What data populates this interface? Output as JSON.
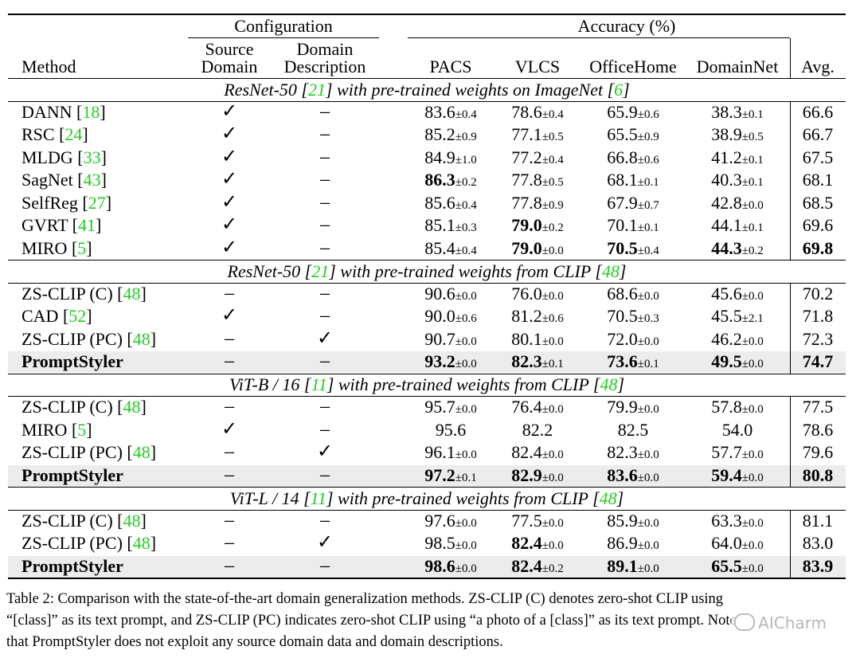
{
  "header": {
    "configuration": "Configuration",
    "accuracy": "Accuracy (%)",
    "method": "Method",
    "source_domain_1": "Source",
    "source_domain_2": "Domain",
    "domain_desc_1": "Domain",
    "domain_desc_2": "Description",
    "pacs": "PACS",
    "vlcs": "VLCS",
    "officehome": "OfficeHome",
    "domainnet": "DomainNet",
    "avg": "Avg."
  },
  "sections": [
    {
      "title_pre": "ResNet-50 [",
      "title_ref1": "21",
      "title_mid": "] with pre-trained weights on ImageNet [",
      "title_ref2": "6",
      "title_post": "]",
      "rows": [
        {
          "method": "DANN [",
          "ref": "18",
          "src": "✓",
          "desc": "–",
          "pacs": "83.6",
          "pacs_sd": "±0.4",
          "vlcs": "78.6",
          "vlcs_sd": "±0.4",
          "oh": "65.9",
          "oh_sd": "±0.6",
          "dn": "38.3",
          "dn_sd": "±0.1",
          "avg": "66.6"
        },
        {
          "method": "RSC [",
          "ref": "24",
          "src": "✓",
          "desc": "–",
          "pacs": "85.2",
          "pacs_sd": "±0.9",
          "vlcs": "77.1",
          "vlcs_sd": "±0.5",
          "oh": "65.5",
          "oh_sd": "±0.9",
          "dn": "38.9",
          "dn_sd": "±0.5",
          "avg": "66.7"
        },
        {
          "method": "MLDG [",
          "ref": "33",
          "src": "✓",
          "desc": "–",
          "pacs": "84.9",
          "pacs_sd": "±1.0",
          "vlcs": "77.2",
          "vlcs_sd": "±0.4",
          "oh": "66.8",
          "oh_sd": "±0.6",
          "dn": "41.2",
          "dn_sd": "±0.1",
          "avg": "67.5"
        },
        {
          "method": "SagNet [",
          "ref": "43",
          "src": "✓",
          "desc": "–",
          "pacs": "86.3",
          "pacs_sd": "±0.2",
          "vlcs": "77.8",
          "vlcs_sd": "±0.5",
          "oh": "68.1",
          "oh_sd": "±0.1",
          "dn": "40.3",
          "dn_sd": "±0.1",
          "avg": "68.1",
          "bold": [
            "pacs"
          ]
        },
        {
          "method": "SelfReg [",
          "ref": "27",
          "src": "✓",
          "desc": "–",
          "pacs": "85.6",
          "pacs_sd": "±0.4",
          "vlcs": "77.8",
          "vlcs_sd": "±0.9",
          "oh": "67.9",
          "oh_sd": "±0.7",
          "dn": "42.8",
          "dn_sd": "±0.0",
          "avg": "68.5"
        },
        {
          "method": "GVRT [",
          "ref": "41",
          "src": "✓",
          "desc": "–",
          "pacs": "85.1",
          "pacs_sd": "±0.3",
          "vlcs": "79.0",
          "vlcs_sd": "±0.2",
          "oh": "70.1",
          "oh_sd": "±0.1",
          "dn": "44.1",
          "dn_sd": "±0.1",
          "avg": "69.6",
          "bold": [
            "vlcs"
          ]
        },
        {
          "method": "MIRO [",
          "ref": "5",
          "src": "✓",
          "desc": "–",
          "pacs": "85.4",
          "pacs_sd": "±0.4",
          "vlcs": "79.0",
          "vlcs_sd": "±0.0",
          "oh": "70.5",
          "oh_sd": "±0.4",
          "dn": "44.3",
          "dn_sd": "±0.2",
          "avg": "69.8",
          "bold": [
            "vlcs",
            "oh",
            "dn",
            "avg"
          ]
        }
      ]
    },
    {
      "title_pre": "ResNet-50 [",
      "title_ref1": "21",
      "title_mid": "] with pre-trained weights from CLIP [",
      "title_ref2": "48",
      "title_post": "]",
      "rows": [
        {
          "method": "ZS-CLIP (C) [",
          "ref": "48",
          "src": "–",
          "desc": "–",
          "pacs": "90.6",
          "pacs_sd": "±0.0",
          "vlcs": "76.0",
          "vlcs_sd": "±0.0",
          "oh": "68.6",
          "oh_sd": "±0.0",
          "dn": "45.6",
          "dn_sd": "±0.0",
          "avg": "70.2"
        },
        {
          "method": "CAD [",
          "ref": "52",
          "src": "✓",
          "desc": "–",
          "pacs": "90.0",
          "pacs_sd": "±0.6",
          "vlcs": "81.2",
          "vlcs_sd": "±0.6",
          "oh": "70.5",
          "oh_sd": "±0.3",
          "dn": "45.5",
          "dn_sd": "±2.1",
          "avg": "71.8"
        },
        {
          "method": "ZS-CLIP (PC) [",
          "ref": "48",
          "src": "–",
          "desc": "✓",
          "pacs": "90.7",
          "pacs_sd": "±0.0",
          "vlcs": "80.1",
          "vlcs_sd": "±0.0",
          "oh": "72.0",
          "oh_sd": "±0.0",
          "dn": "46.2",
          "dn_sd": "±0.0",
          "avg": "72.3"
        },
        {
          "method": "PromptStyler",
          "ref": "",
          "src": "–",
          "desc": "–",
          "pacs": "93.2",
          "pacs_sd": "±0.0",
          "vlcs": "82.3",
          "vlcs_sd": "±0.1",
          "oh": "73.6",
          "oh_sd": "±0.1",
          "dn": "49.5",
          "dn_sd": "±0.0",
          "avg": "74.7",
          "ours": true,
          "bold": [
            "pacs",
            "vlcs",
            "oh",
            "dn",
            "avg"
          ]
        }
      ]
    },
    {
      "title_pre": "ViT-B / 16 [",
      "title_ref1": "11",
      "title_mid": "] with pre-trained weights from CLIP [",
      "title_ref2": "48",
      "title_post": "]",
      "rows": [
        {
          "method": "ZS-CLIP (C) [",
          "ref": "48",
          "src": "–",
          "desc": "–",
          "pacs": "95.7",
          "pacs_sd": "±0.0",
          "vlcs": "76.4",
          "vlcs_sd": "±0.0",
          "oh": "79.9",
          "oh_sd": "±0.0",
          "dn": "57.8",
          "dn_sd": "±0.0",
          "avg": "77.5"
        },
        {
          "method": "MIRO [",
          "ref": "5",
          "src": "✓",
          "desc": "–",
          "pacs": "95.6",
          "pacs_sd": "",
          "vlcs": "82.2",
          "vlcs_sd": "",
          "oh": "82.5",
          "oh_sd": "",
          "dn": "54.0",
          "dn_sd": "",
          "avg": "78.6"
        },
        {
          "method": "ZS-CLIP (PC) [",
          "ref": "48",
          "src": "–",
          "desc": "✓",
          "pacs": "96.1",
          "pacs_sd": "±0.0",
          "vlcs": "82.4",
          "vlcs_sd": "±0.0",
          "oh": "82.3",
          "oh_sd": "±0.0",
          "dn": "57.7",
          "dn_sd": "±0.0",
          "avg": "79.6"
        },
        {
          "method": "PromptStyler",
          "ref": "",
          "src": "–",
          "desc": "–",
          "pacs": "97.2",
          "pacs_sd": "±0.1",
          "vlcs": "82.9",
          "vlcs_sd": "±0.0",
          "oh": "83.6",
          "oh_sd": "±0.0",
          "dn": "59.4",
          "dn_sd": "±0.0",
          "avg": "80.8",
          "ours": true,
          "bold": [
            "pacs",
            "vlcs",
            "oh",
            "dn",
            "avg"
          ]
        }
      ]
    },
    {
      "title_pre": "ViT-L / 14 [",
      "title_ref1": "11",
      "title_mid": "] with pre-trained weights from CLIP [",
      "title_ref2": "48",
      "title_post": "]",
      "rows": [
        {
          "method": "ZS-CLIP (C) [",
          "ref": "48",
          "src": "–",
          "desc": "–",
          "pacs": "97.6",
          "pacs_sd": "±0.0",
          "vlcs": "77.5",
          "vlcs_sd": "±0.0",
          "oh": "85.9",
          "oh_sd": "±0.0",
          "dn": "63.3",
          "dn_sd": "±0.0",
          "avg": "81.1"
        },
        {
          "method": "ZS-CLIP (PC) [",
          "ref": "48",
          "src": "–",
          "desc": "✓",
          "pacs": "98.5",
          "pacs_sd": "±0.0",
          "vlcs": "82.4",
          "vlcs_sd": "±0.0",
          "oh": "86.9",
          "oh_sd": "±0.0",
          "dn": "64.0",
          "dn_sd": "±0.0",
          "avg": "83.0",
          "bold": [
            "vlcs"
          ]
        },
        {
          "method": "PromptStyler",
          "ref": "",
          "src": "–",
          "desc": "–",
          "pacs": "98.6",
          "pacs_sd": "±0.0",
          "vlcs": "82.4",
          "vlcs_sd": "±0.2",
          "oh": "89.1",
          "oh_sd": "±0.0",
          "dn": "65.5",
          "dn_sd": "±0.0",
          "avg": "83.9",
          "ours": true,
          "bold": [
            "pacs",
            "vlcs",
            "oh",
            "dn",
            "avg"
          ]
        }
      ]
    }
  ],
  "caption": {
    "line1": "Table 2: Comparison with the state-of-the-art domain generalization methods. ZS-CLIP (C) denotes zero-shot CLIP using",
    "line2": "“[class]” as its text prompt, and ZS-CLIP (PC) indicates zero-shot CLIP using “a photo of a [class]” as its text prompt. Note",
    "line3": "that PromptStyler does not exploit any source domain data and domain descriptions."
  },
  "watermark": "AICharm",
  "colors": {
    "ref": "#22cc22",
    "shade": "#ececec"
  }
}
